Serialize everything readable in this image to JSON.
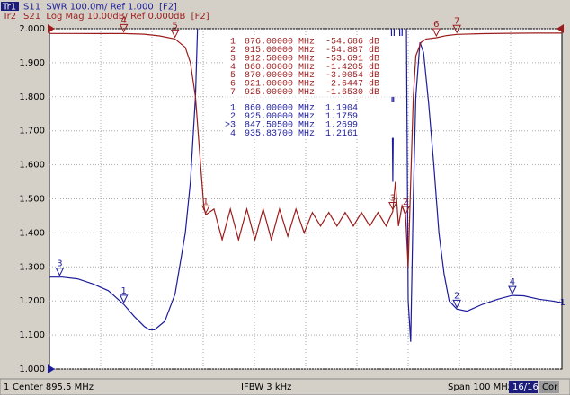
{
  "chart_data": {
    "type": "line",
    "header": {
      "tr1": "Tr1",
      "tr1_text": "S11  SWR 100.0m/ Ref 1.000  [F2]",
      "tr2": "Tr2",
      "tr2_text": "S21  Log Mag 10.00dB/ Ref 0.000dB  [F2]"
    },
    "status": {
      "channel": "1",
      "center": "Center 895.5 MHz",
      "ifbw": "IFBW 3 kHz",
      "span": "Span 100 MHz",
      "count": "16/16",
      "cor": "Cor"
    },
    "xlim": [
      845.5,
      945.5
    ],
    "ylim": [
      1.0,
      2.0
    ],
    "y2lim": [
      -100,
      0
    ],
    "yticks": [
      {
        "value": 1.0,
        "label": "1.000"
      },
      {
        "value": 1.1,
        "label": "1.100"
      },
      {
        "value": 1.2,
        "label": "1.200"
      },
      {
        "value": 1.3,
        "label": "1.300"
      },
      {
        "value": 1.4,
        "label": "1.400"
      },
      {
        "value": 1.5,
        "label": "1.500"
      },
      {
        "value": 1.6,
        "label": "1.600"
      },
      {
        "value": 1.7,
        "label": "1.700"
      },
      {
        "value": 1.8,
        "label": "1.800"
      },
      {
        "value": 1.9,
        "label": "1.900"
      },
      {
        "value": 2.0,
        "label": "2.000"
      }
    ],
    "grid": true,
    "series": [
      {
        "name": "S11",
        "color": "#1c1c9c",
        "end_label": "1",
        "x": [
          845.5,
          848,
          851,
          854,
          857,
          860,
          862,
          864,
          865,
          866,
          868,
          870,
          872,
          873,
          874,
          875,
          880,
          890,
          900,
          910,
          912,
          912.5,
          913,
          913.5,
          914,
          915,
          915.5,
          916,
          916.5,
          917,
          917.8,
          918.5,
          919.5,
          920.5,
          921.5,
          922.5,
          923.5,
          925,
          927,
          930,
          933,
          935.8,
          938,
          941,
          943.5,
          945.5
        ],
        "values": [
          1.27,
          1.27,
          1.265,
          1.25,
          1.23,
          1.19,
          1.155,
          1.125,
          1.115,
          1.115,
          1.14,
          1.22,
          1.4,
          1.55,
          1.8,
          2.3,
          2.5,
          2.5,
          2.5,
          2.5,
          2.4,
          1.55,
          2.4,
          2.4,
          1.8,
          2.4,
          1.2,
          1.08,
          1.5,
          1.8,
          1.96,
          1.93,
          1.78,
          1.6,
          1.4,
          1.28,
          1.2,
          1.176,
          1.17,
          1.19,
          1.205,
          1.216,
          1.215,
          1.205,
          1.2,
          1.195
        ],
        "markers": [
          {
            "label": "1",
            "x": 860,
            "value": 1.1904
          },
          {
            "label": "2",
            "x": 925,
            "value": 1.1759
          },
          {
            "label": "3",
            "x": 847.505,
            "value": 1.2699
          },
          {
            "label": "4",
            "x": 935.837,
            "value": 1.2161
          }
        ],
        "readout": [
          [
            "1",
            "860.00000 MHz",
            "1.1904"
          ],
          [
            "2",
            "925.00000 MHz",
            "1.1759"
          ],
          [
            ">3",
            "847.50500 MHz",
            "1.2699"
          ],
          [
            "4",
            "935.83700 MHz",
            "1.2161"
          ]
        ]
      },
      {
        "name": "S21",
        "color": "#9c1c1c",
        "axis": "y2",
        "x": [
          845.5,
          850,
          855,
          860,
          864,
          867,
          870,
          872,
          873,
          874,
          875,
          875.6,
          876,
          877.6,
          879.2,
          880.8,
          882.4,
          884,
          885.6,
          887.2,
          888.8,
          890.4,
          892,
          893.6,
          895.2,
          896.8,
          898.4,
          900,
          901.6,
          903.2,
          904.8,
          906.4,
          908,
          909.6,
          911.2,
          912.5,
          913,
          913.6,
          914.3,
          915,
          915.5,
          916,
          916.5,
          917,
          918,
          919,
          921,
          923,
          925,
          930,
          935,
          940,
          945.5
        ],
        "values": [
          -1.4,
          -1.4,
          -1.42,
          -1.4205,
          -1.6,
          -2.1,
          -3.0054,
          -5.5,
          -10,
          -20,
          -40,
          -52,
          -54.686,
          -53,
          -62,
          -53,
          -62,
          -53,
          -62,
          -53,
          -62,
          -53,
          -61,
          -53,
          -60,
          -54,
          -58,
          -54,
          -58,
          -54,
          -58,
          -54,
          -58,
          -54,
          -58,
          -53.691,
          -45,
          -58,
          -52,
          -54.887,
          -70,
          -45,
          -20,
          -8,
          -4,
          -3,
          -2.6447,
          -2,
          -1.653,
          -1.45,
          -1.35,
          -1.3,
          -1.3
        ],
        "markers": [
          {
            "label": "1",
            "x": 876,
            "value": -54.686
          },
          {
            "label": "2",
            "x": 915,
            "value": -54.887
          },
          {
            "label": "3",
            "x": 912.5,
            "value": -53.691
          },
          {
            "label": "4",
            "x": 860,
            "value": -1.4205
          },
          {
            "label": "5",
            "x": 870,
            "value": -3.0054
          },
          {
            "label": "6",
            "x": 921,
            "value": -2.6447
          },
          {
            "label": "7",
            "x": 925,
            "value": -1.653
          }
        ],
        "readout": [
          [
            "1",
            "876.00000 MHz",
            "-54.686 dB"
          ],
          [
            "2",
            "915.00000 MHz",
            "-54.887 dB"
          ],
          [
            "3",
            "912.50000 MHz",
            "-53.691 dB"
          ],
          [
            "4",
            "860.00000 MHz",
            "-1.4205 dB"
          ],
          [
            "5",
            "870.00000 MHz",
            "-3.0054 dB"
          ],
          [
            "6",
            "921.00000 MHz",
            "-2.6447 dB"
          ],
          [
            "7",
            "925.00000 MHz",
            "-1.6530 dB"
          ]
        ]
      }
    ]
  }
}
